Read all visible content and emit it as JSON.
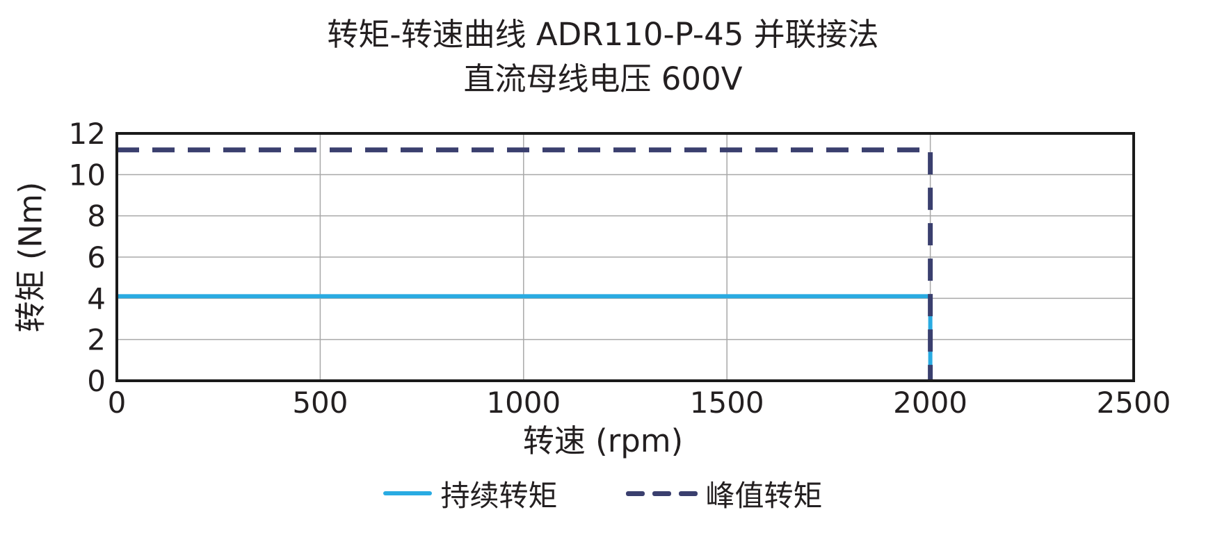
{
  "title": {
    "line1": "转矩-转速曲线 ADR110-P-45 并联接法",
    "line2": "直流母线电压 600V"
  },
  "chart_data": {
    "type": "line",
    "title": "转矩-转速曲线 ADR110-P-45 并联接法 直流母线电压 600V",
    "xlabel": "转速 (rpm)",
    "ylabel": "转矩 (Nm)",
    "xlim": [
      0,
      2500
    ],
    "ylim": [
      0,
      12
    ],
    "xticks": [
      0,
      500,
      1000,
      1500,
      2000,
      2500
    ],
    "yticks": [
      0,
      2,
      4,
      6,
      8,
      10,
      12
    ],
    "grid": true,
    "legend_position": "bottom",
    "series": [
      {
        "name": "持续转矩",
        "style": "solid",
        "color": "#29ABE2",
        "width": 6,
        "x": [
          0,
          2000,
          2000
        ],
        "y": [
          4.1,
          4.1,
          0
        ]
      },
      {
        "name": "峰值转矩",
        "style": "dashed",
        "color": "#3A3F6E",
        "width": 7,
        "dash": [
          32,
          19
        ],
        "x": [
          0,
          2000,
          2000
        ],
        "y": [
          11.2,
          11.2,
          0
        ]
      }
    ]
  },
  "colors": {
    "text": "#231F20",
    "frame": "#1A1A1A",
    "grid": "#A8A8A8",
    "background": "#FFFFFF"
  }
}
